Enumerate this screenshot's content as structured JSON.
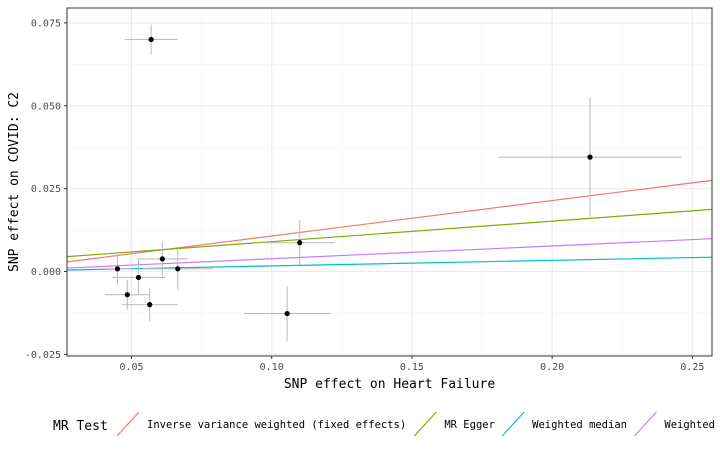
{
  "chart_data": {
    "type": "scatter",
    "xlabel": "SNP effect on Heart Failure",
    "ylabel": "SNP effect on COVID: C2",
    "xlim": [
      0.027,
      0.257
    ],
    "ylim": [
      -0.0255,
      0.0795
    ],
    "x_ticks": [
      0.05,
      0.1,
      0.15,
      0.2,
      0.25
    ],
    "x_tick_labels": [
      "0.05",
      "0.10",
      "0.15",
      "0.20",
      "0.25"
    ],
    "y_ticks": [
      -0.025,
      0.0,
      0.025,
      0.05,
      0.075
    ],
    "y_tick_labels": [
      "-0.025",
      "0.000",
      "0.025",
      "0.050",
      "0.075"
    ],
    "grid": true,
    "points": [
      {
        "x": 0.057,
        "y": 0.07,
        "xlo": 0.0475,
        "xhi": 0.0665,
        "ylo": 0.0655,
        "yhi": 0.0745
      },
      {
        "x": 0.2135,
        "y": 0.0345,
        "xlo": 0.181,
        "xhi": 0.246,
        "ylo": 0.0165,
        "yhi": 0.0525
      },
      {
        "x": 0.11,
        "y": 0.0087,
        "xlo": 0.0975,
        "xhi": 0.1225,
        "ylo": 0.002,
        "yhi": 0.0155
      },
      {
        "x": 0.061,
        "y": 0.0038,
        "xlo": 0.052,
        "xhi": 0.07,
        "ylo": -0.0015,
        "yhi": 0.009
      },
      {
        "x": 0.045,
        "y": 0.0008,
        "xlo": 0.04,
        "xhi": 0.05,
        "ylo": -0.004,
        "yhi": 0.0055
      },
      {
        "x": 0.0665,
        "y": 0.0008,
        "xlo": 0.054,
        "xhi": 0.079,
        "ylo": -0.0055,
        "yhi": 0.007
      },
      {
        "x": 0.0525,
        "y": -0.0018,
        "xlo": 0.043,
        "xhi": 0.062,
        "ylo": -0.007,
        "yhi": 0.0035
      },
      {
        "x": 0.0485,
        "y": -0.007,
        "xlo": 0.0405,
        "xhi": 0.0565,
        "ylo": -0.0115,
        "yhi": -0.0025
      },
      {
        "x": 0.0565,
        "y": -0.01,
        "xlo": 0.0465,
        "xhi": 0.0665,
        "ylo": -0.015,
        "yhi": -0.005
      },
      {
        "x": 0.1055,
        "y": -0.0127,
        "xlo": 0.09,
        "xhi": 0.121,
        "ylo": -0.021,
        "yhi": -0.0045
      }
    ],
    "legend_title": "MR Test",
    "legend_position": "bottom",
    "series": [
      {
        "name": "Inverse variance weighted (fixed effects)",
        "color": "#F8766D",
        "intercept": 0.0,
        "slope": 0.107
      },
      {
        "name": "MR Egger",
        "color": "#7CAE00",
        "intercept": 0.0028,
        "slope": 0.062
      },
      {
        "name": "Weighted median",
        "color": "#00BFC4",
        "intercept": 0.0,
        "slope": 0.0168
      },
      {
        "name": "Weighted mode",
        "color": "#C77CFF",
        "intercept": 0.0,
        "slope": 0.0385
      }
    ],
    "colors": {
      "panel_border": "#333333",
      "grid_major": "#ebebeb",
      "grid_minor": "#f5f5f5",
      "errorbar": "#bfbfbf",
      "point": "#000000",
      "tick": "#333333"
    }
  }
}
